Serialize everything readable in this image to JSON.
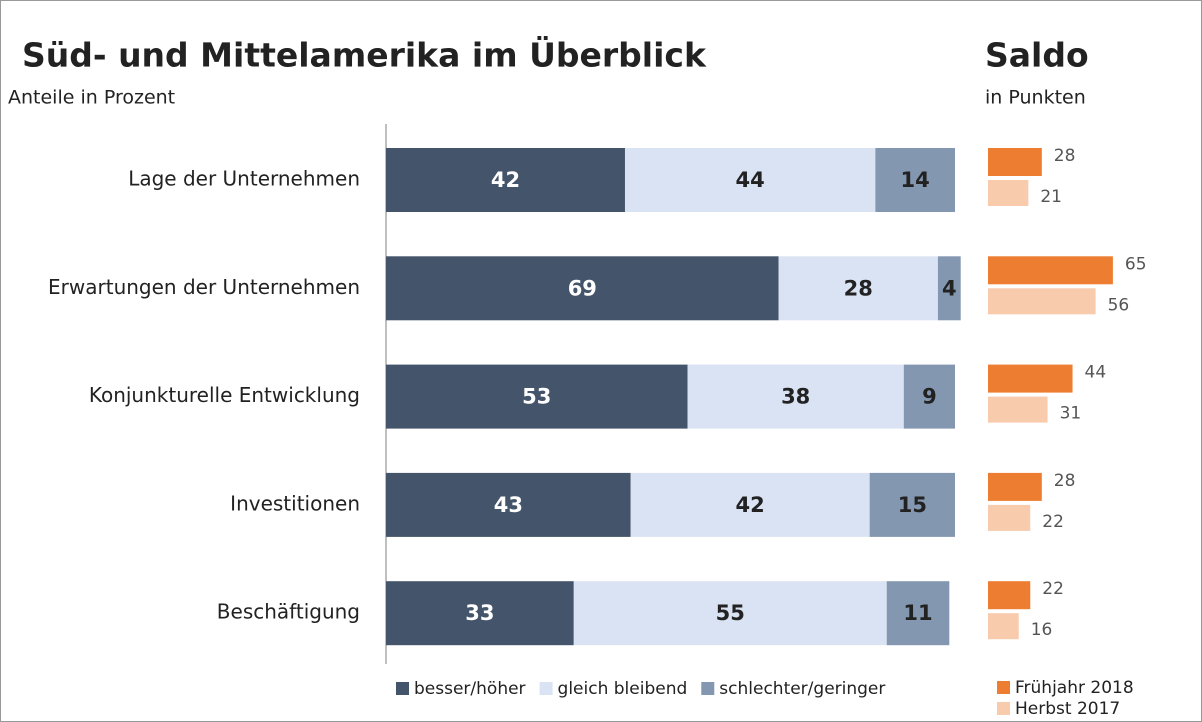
{
  "chart_data": [
    {
      "type": "bar",
      "orientation": "horizontal",
      "stacked": true,
      "title": "Süd- und Mittelamerika im Überblick",
      "subtitle": "Anteile in Prozent",
      "categories": [
        "Lage der Unternehmen",
        "Erwartungen der Unternehmen",
        "Konjunkturelle Entwicklung",
        "Investitionen",
        "Beschäftigung"
      ],
      "series": [
        {
          "name": "besser/höher",
          "color": "#44546a",
          "label_color": "#ffffff",
          "values": [
            42,
            69,
            53,
            43,
            33
          ]
        },
        {
          "name": "gleich bleibend",
          "color": "#dae3f3",
          "label_color": "#222222",
          "values": [
            44,
            28,
            38,
            42,
            55
          ]
        },
        {
          "name": "schlechter/geringer",
          "color": "#8497b0",
          "label_color": "#222222",
          "values": [
            14,
            4,
            9,
            15,
            11
          ]
        }
      ],
      "xlim": [
        0,
        100
      ],
      "legend": "bottom"
    },
    {
      "type": "bar",
      "orientation": "horizontal",
      "stacked": false,
      "title": "Saldo",
      "subtitle": "in Punkten",
      "series": [
        {
          "name": "Frühjahr 2018",
          "color": "#ed7d31",
          "values": [
            28,
            65,
            44,
            28,
            22
          ]
        },
        {
          "name": "Herbst 2017",
          "color": "#f8cbad",
          "values": [
            21,
            56,
            31,
            22,
            16
          ]
        }
      ],
      "xlim": [
        0,
        70
      ],
      "legend": "bottom"
    }
  ]
}
